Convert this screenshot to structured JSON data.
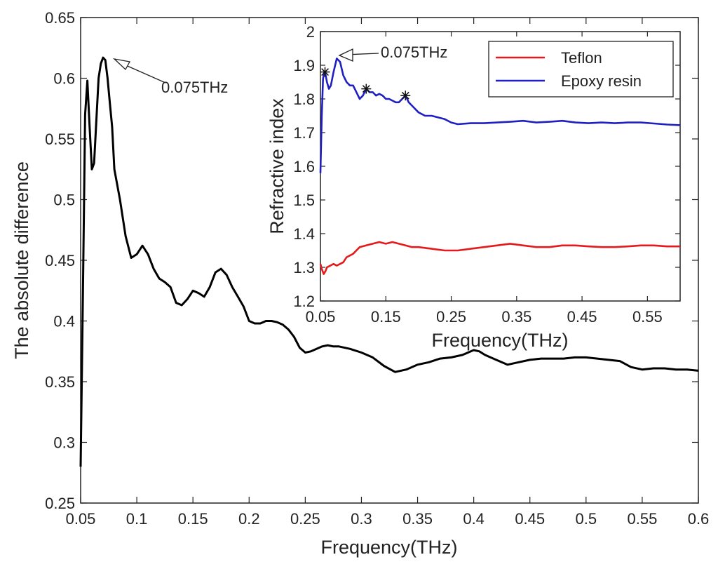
{
  "chart_data": [
    {
      "type": "line",
      "name": "main",
      "xlabel": "Frequency(THz)",
      "ylabel": "The absolute difference",
      "xlim": [
        0.05,
        0.6
      ],
      "ylim": [
        0.25,
        0.65
      ],
      "x_ticks": [
        "0.05",
        "0.1",
        "0.15",
        "0.2",
        "0.25",
        "0.3",
        "0.35",
        "0.4",
        "0.45",
        "0.5",
        "0.55",
        "0.6"
      ],
      "y_ticks": [
        "0.25",
        "0.3",
        "0.35",
        "0.4",
        "0.45",
        "0.5",
        "0.55",
        "0.6",
        "0.65"
      ],
      "annotation": {
        "text": "0.075THz",
        "x": 0.075,
        "y": 0.617
      },
      "series": [
        {
          "name": "absolute difference",
          "color": "#000000",
          "x": [
            0.05,
            0.052,
            0.054,
            0.056,
            0.058,
            0.06,
            0.062,
            0.064,
            0.066,
            0.068,
            0.07,
            0.072,
            0.074,
            0.076,
            0.078,
            0.08,
            0.085,
            0.09,
            0.095,
            0.1,
            0.105,
            0.11,
            0.115,
            0.12,
            0.125,
            0.13,
            0.135,
            0.14,
            0.145,
            0.15,
            0.155,
            0.16,
            0.165,
            0.17,
            0.175,
            0.18,
            0.185,
            0.19,
            0.195,
            0.2,
            0.205,
            0.21,
            0.215,
            0.22,
            0.225,
            0.23,
            0.235,
            0.24,
            0.245,
            0.25,
            0.255,
            0.26,
            0.265,
            0.27,
            0.275,
            0.28,
            0.29,
            0.3,
            0.31,
            0.32,
            0.33,
            0.34,
            0.35,
            0.36,
            0.37,
            0.38,
            0.39,
            0.4,
            0.405,
            0.41,
            0.42,
            0.43,
            0.44,
            0.45,
            0.46,
            0.47,
            0.48,
            0.49,
            0.5,
            0.51,
            0.52,
            0.53,
            0.54,
            0.55,
            0.56,
            0.57,
            0.58,
            0.59,
            0.6
          ],
          "values": [
            0.28,
            0.42,
            0.57,
            0.598,
            0.56,
            0.525,
            0.53,
            0.565,
            0.6,
            0.612,
            0.617,
            0.615,
            0.6,
            0.58,
            0.56,
            0.525,
            0.5,
            0.47,
            0.452,
            0.455,
            0.462,
            0.455,
            0.443,
            0.435,
            0.432,
            0.428,
            0.415,
            0.413,
            0.418,
            0.425,
            0.423,
            0.42,
            0.428,
            0.44,
            0.443,
            0.438,
            0.428,
            0.42,
            0.412,
            0.4,
            0.398,
            0.398,
            0.4,
            0.4,
            0.399,
            0.397,
            0.393,
            0.387,
            0.378,
            0.374,
            0.375,
            0.377,
            0.379,
            0.38,
            0.379,
            0.379,
            0.377,
            0.374,
            0.37,
            0.363,
            0.358,
            0.36,
            0.364,
            0.366,
            0.369,
            0.37,
            0.372,
            0.376,
            0.375,
            0.372,
            0.368,
            0.364,
            0.366,
            0.368,
            0.369,
            0.369,
            0.369,
            0.37,
            0.37,
            0.369,
            0.368,
            0.367,
            0.362,
            0.36,
            0.361,
            0.361,
            0.36,
            0.36,
            0.359
          ]
        }
      ]
    },
    {
      "type": "line",
      "name": "inset",
      "xlabel": "Frequency(THz)",
      "ylabel": "Refractive index",
      "xlim": [
        0.05,
        0.6
      ],
      "ylim": [
        1.2,
        2.0
      ],
      "x_ticks": [
        "0.05",
        "0.15",
        "0.25",
        "0.35",
        "0.45",
        "0.55"
      ],
      "y_ticks": [
        "1.2",
        "1.3",
        "1.4",
        "1.5",
        "1.6",
        "1.7",
        "1.8",
        "1.9",
        "2"
      ],
      "annotation": {
        "text": "0.075THz",
        "x": 0.075,
        "y": 1.92
      },
      "legend": {
        "position": "top-right",
        "entries": [
          "Teflon",
          "Epoxy resin"
        ]
      },
      "markers": [
        {
          "x": 0.057,
          "y": 1.88
        },
        {
          "x": 0.12,
          "y": 1.83
        },
        {
          "x": 0.18,
          "y": 1.81
        }
      ],
      "series": [
        {
          "name": "Teflon",
          "color": "#e41a1c",
          "x": [
            0.05,
            0.052,
            0.055,
            0.058,
            0.06,
            0.065,
            0.07,
            0.075,
            0.08,
            0.085,
            0.09,
            0.1,
            0.11,
            0.12,
            0.13,
            0.14,
            0.15,
            0.16,
            0.17,
            0.18,
            0.19,
            0.2,
            0.22,
            0.24,
            0.26,
            0.28,
            0.3,
            0.32,
            0.34,
            0.36,
            0.38,
            0.4,
            0.42,
            0.44,
            0.46,
            0.48,
            0.5,
            0.52,
            0.54,
            0.56,
            0.58,
            0.6
          ],
          "values": [
            1.31,
            1.295,
            1.28,
            1.29,
            1.3,
            1.305,
            1.31,
            1.305,
            1.31,
            1.315,
            1.33,
            1.34,
            1.36,
            1.365,
            1.37,
            1.375,
            1.37,
            1.375,
            1.37,
            1.365,
            1.36,
            1.36,
            1.355,
            1.35,
            1.35,
            1.355,
            1.36,
            1.365,
            1.37,
            1.365,
            1.36,
            1.36,
            1.365,
            1.365,
            1.362,
            1.36,
            1.36,
            1.362,
            1.365,
            1.365,
            1.362,
            1.362
          ]
        },
        {
          "name": "Epoxy resin",
          "color": "#2020c0",
          "x": [
            0.05,
            0.052,
            0.054,
            0.056,
            0.058,
            0.06,
            0.063,
            0.066,
            0.07,
            0.075,
            0.08,
            0.085,
            0.09,
            0.095,
            0.1,
            0.105,
            0.11,
            0.115,
            0.12,
            0.125,
            0.13,
            0.135,
            0.14,
            0.145,
            0.15,
            0.155,
            0.16,
            0.165,
            0.17,
            0.175,
            0.18,
            0.185,
            0.19,
            0.2,
            0.21,
            0.22,
            0.23,
            0.24,
            0.25,
            0.26,
            0.28,
            0.3,
            0.32,
            0.34,
            0.36,
            0.38,
            0.4,
            0.42,
            0.44,
            0.46,
            0.48,
            0.5,
            0.52,
            0.54,
            0.56,
            0.58,
            0.6
          ],
          "values": [
            1.58,
            1.75,
            1.86,
            1.88,
            1.87,
            1.85,
            1.83,
            1.84,
            1.88,
            1.92,
            1.91,
            1.87,
            1.85,
            1.84,
            1.84,
            1.82,
            1.8,
            1.81,
            1.83,
            1.82,
            1.82,
            1.81,
            1.815,
            1.81,
            1.8,
            1.8,
            1.795,
            1.79,
            1.79,
            1.8,
            1.81,
            1.79,
            1.78,
            1.76,
            1.75,
            1.75,
            1.745,
            1.74,
            1.73,
            1.725,
            1.728,
            1.728,
            1.73,
            1.732,
            1.735,
            1.73,
            1.732,
            1.735,
            1.73,
            1.728,
            1.73,
            1.728,
            1.73,
            1.73,
            1.727,
            1.724,
            1.722
          ]
        }
      ]
    }
  ]
}
